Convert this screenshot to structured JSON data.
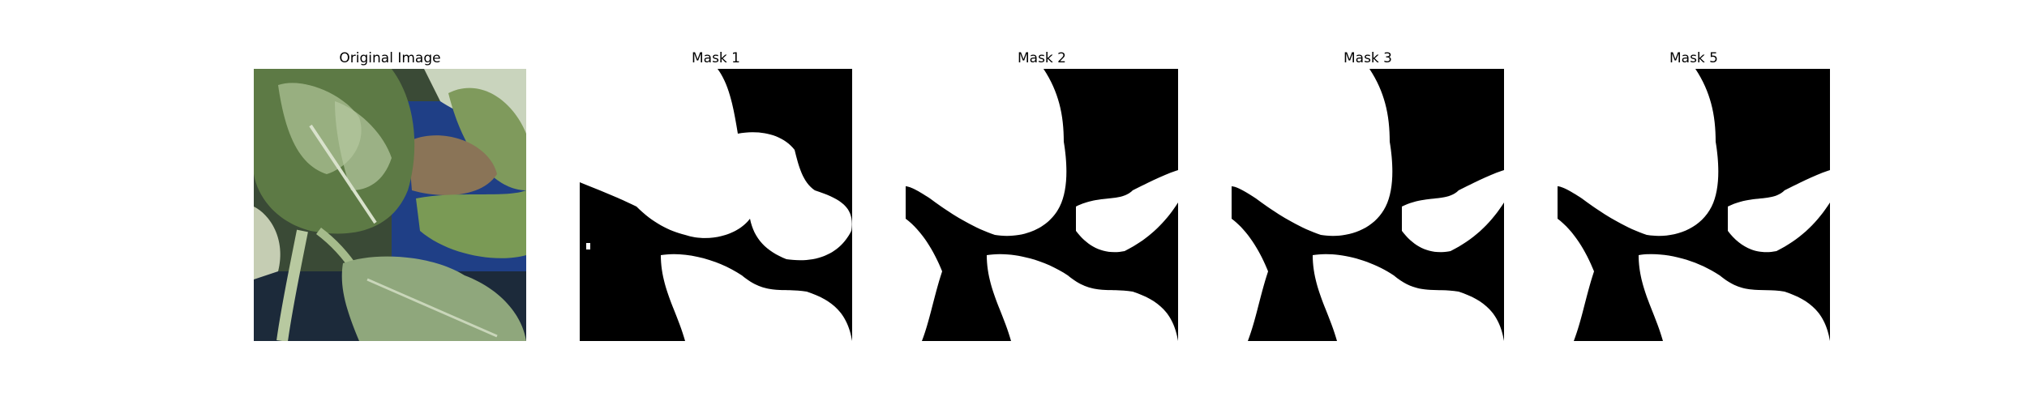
{
  "panels": [
    {
      "title": "Original Image"
    },
    {
      "title": "Mask 1"
    },
    {
      "title": "Mask 2"
    },
    {
      "title": "Mask 3"
    },
    {
      "title": "Mask 5"
    }
  ],
  "colors": {
    "background": "#ffffff",
    "mask_foreground": "#ffffff",
    "mask_background": "#000000",
    "leaf_dark": "#4f6b3a",
    "leaf_light": "#9fb58a",
    "sky_blue": "#1f3f86",
    "pale_leaf": "#c9d4bd"
  }
}
